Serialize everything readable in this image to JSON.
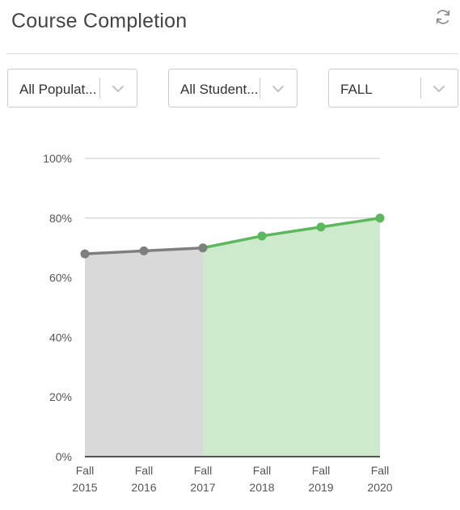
{
  "header": {
    "title": "Course Completion",
    "refresh_icon": "refresh-icon"
  },
  "filters": {
    "population": {
      "value": "All Populat...",
      "icon": "chevron-down-icon"
    },
    "student": {
      "value": "All Student...",
      "icon": "chevron-down-icon"
    },
    "term": {
      "value": "FALL",
      "icon": "chevron-down-icon"
    }
  },
  "colors": {
    "historical_line": "#7f7f7f",
    "historical_fill": "#d9d9d9",
    "current_line": "#5cb85c",
    "current_fill": "#cdeacc",
    "grid": "#c8c8c8"
  },
  "chart_data": {
    "type": "line",
    "title": "",
    "xlabel": "",
    "ylabel": "",
    "categories": [
      [
        "Fall",
        "2015"
      ],
      [
        "Fall",
        "2016"
      ],
      [
        "Fall",
        "2017"
      ],
      [
        "Fall",
        "2018"
      ],
      [
        "Fall",
        "2019"
      ],
      [
        "Fall",
        "2020"
      ]
    ],
    "values": [
      68,
      69,
      70,
      74,
      77,
      80
    ],
    "highlight_from_index": 2,
    "ylim": [
      0,
      100
    ],
    "yticks": [
      0,
      20,
      40,
      60,
      80,
      100
    ],
    "ytick_labels": [
      "0%",
      "20%",
      "40%",
      "60%",
      "80%",
      "100%"
    ],
    "grid": true,
    "legend": "none"
  }
}
